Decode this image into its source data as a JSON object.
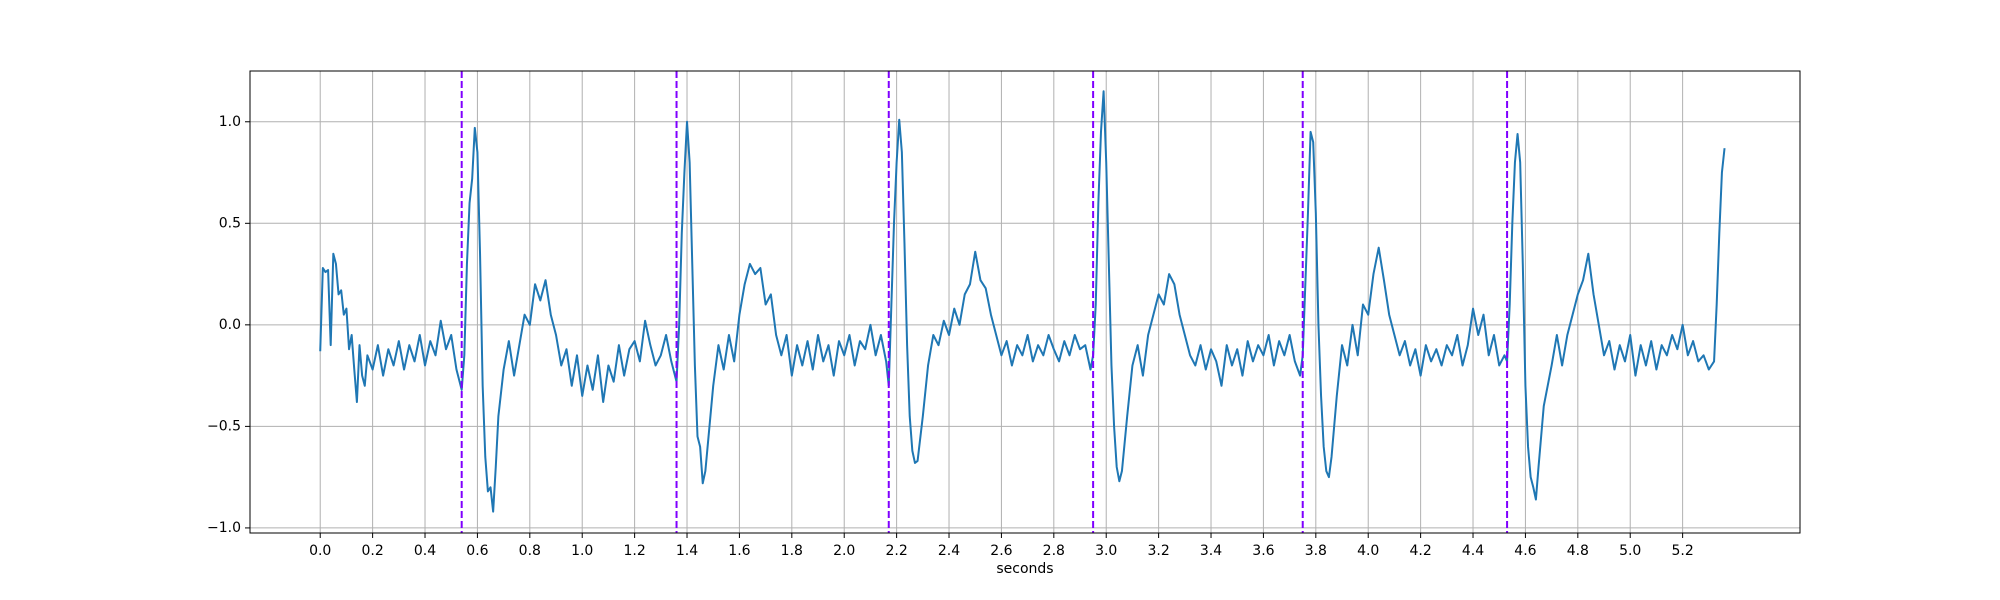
{
  "chart_data": {
    "type": "line",
    "xlabel": "seconds",
    "xlim": [
      -0.268,
      5.648
    ],
    "ylim": [
      -1.025,
      1.25
    ],
    "grid": true,
    "xticks": [
      {
        "value": 0,
        "label": "0.0"
      },
      0.2,
      0.4,
      0.6,
      0.8,
      {
        "value": 1,
        "label": "1.0"
      },
      1.2,
      1.4,
      1.6,
      1.8,
      {
        "value": 2,
        "label": "2.0"
      },
      2.2,
      2.4,
      2.6,
      2.8,
      {
        "value": 3,
        "label": "3.0"
      },
      3.2,
      3.4,
      3.6,
      3.8,
      {
        "value": 4,
        "label": "4.0"
      },
      4.2,
      4.4,
      4.6,
      4.8,
      {
        "value": 5,
        "label": "5.0"
      },
      5.2
    ],
    "yticks": [
      {
        "value": -1,
        "label": "−1.0"
      },
      {
        "value": -0.5,
        "label": "−0.5"
      },
      {
        "value": 0,
        "label": "0.0"
      },
      0.5,
      {
        "value": 1,
        "label": "1.0"
      }
    ],
    "vlines": {
      "x": [
        0.54,
        1.36,
        2.17,
        2.95,
        3.75,
        4.53
      ],
      "color": "#7f00ff"
    },
    "series": [
      {
        "color": "#1f77b4",
        "x": [
          0.0,
          0.01,
          0.02,
          0.03,
          0.04,
          0.05,
          0.06,
          0.07,
          0.08,
          0.09,
          0.1,
          0.11,
          0.12,
          0.13,
          0.14,
          0.15,
          0.16,
          0.17,
          0.18,
          0.2,
          0.22,
          0.24,
          0.26,
          0.28,
          0.3,
          0.32,
          0.34,
          0.36,
          0.38,
          0.4,
          0.42,
          0.44,
          0.46,
          0.48,
          0.5,
          0.52,
          0.54,
          0.55,
          0.56,
          0.57,
          0.58,
          0.59,
          0.6,
          0.61,
          0.62,
          0.63,
          0.64,
          0.65,
          0.66,
          0.67,
          0.68,
          0.7,
          0.72,
          0.74,
          0.76,
          0.78,
          0.8,
          0.82,
          0.84,
          0.86,
          0.88,
          0.9,
          0.92,
          0.94,
          0.96,
          0.98,
          1.0,
          1.02,
          1.04,
          1.06,
          1.08,
          1.1,
          1.12,
          1.14,
          1.16,
          1.18,
          1.2,
          1.22,
          1.24,
          1.26,
          1.28,
          1.3,
          1.32,
          1.34,
          1.36,
          1.37,
          1.38,
          1.39,
          1.4,
          1.41,
          1.42,
          1.43,
          1.44,
          1.45,
          1.46,
          1.47,
          1.48,
          1.5,
          1.52,
          1.54,
          1.56,
          1.58,
          1.6,
          1.62,
          1.64,
          1.66,
          1.68,
          1.7,
          1.72,
          1.74,
          1.76,
          1.78,
          1.8,
          1.82,
          1.84,
          1.86,
          1.88,
          1.9,
          1.92,
          1.94,
          1.96,
          1.98,
          2.0,
          2.02,
          2.04,
          2.06,
          2.08,
          2.1,
          2.12,
          2.14,
          2.16,
          2.17,
          2.18,
          2.19,
          2.2,
          2.21,
          2.22,
          2.23,
          2.24,
          2.25,
          2.26,
          2.27,
          2.28,
          2.3,
          2.32,
          2.34,
          2.36,
          2.38,
          2.4,
          2.42,
          2.44,
          2.46,
          2.48,
          2.5,
          2.52,
          2.54,
          2.56,
          2.58,
          2.6,
          2.62,
          2.64,
          2.66,
          2.68,
          2.7,
          2.72,
          2.74,
          2.76,
          2.78,
          2.8,
          2.82,
          2.84,
          2.86,
          2.88,
          2.9,
          2.92,
          2.94,
          2.95,
          2.96,
          2.97,
          2.98,
          2.99,
          3.0,
          3.01,
          3.02,
          3.03,
          3.04,
          3.05,
          3.06,
          3.08,
          3.1,
          3.12,
          3.14,
          3.16,
          3.18,
          3.2,
          3.22,
          3.24,
          3.26,
          3.28,
          3.3,
          3.32,
          3.34,
          3.36,
          3.38,
          3.4,
          3.42,
          3.44,
          3.46,
          3.48,
          3.5,
          3.52,
          3.54,
          3.56,
          3.58,
          3.6,
          3.62,
          3.64,
          3.66,
          3.68,
          3.7,
          3.72,
          3.74,
          3.75,
          3.76,
          3.77,
          3.78,
          3.79,
          3.8,
          3.81,
          3.82,
          3.83,
          3.84,
          3.85,
          3.86,
          3.88,
          3.9,
          3.92,
          3.94,
          3.96,
          3.98,
          4.0,
          4.02,
          4.04,
          4.06,
          4.08,
          4.1,
          4.12,
          4.14,
          4.16,
          4.18,
          4.2,
          4.22,
          4.24,
          4.26,
          4.28,
          4.3,
          4.32,
          4.34,
          4.36,
          4.38,
          4.4,
          4.42,
          4.44,
          4.46,
          4.48,
          4.5,
          4.52,
          4.53,
          4.54,
          4.55,
          4.56,
          4.57,
          4.58,
          4.59,
          4.6,
          4.61,
          4.62,
          4.63,
          4.64,
          4.65,
          4.67,
          4.7,
          4.72,
          4.74,
          4.76,
          4.78,
          4.8,
          4.82,
          4.84,
          4.86,
          4.88,
          4.9,
          4.92,
          4.94,
          4.96,
          4.98,
          5.0,
          5.02,
          5.04,
          5.06,
          5.08,
          5.1,
          5.12,
          5.14,
          5.16,
          5.18,
          5.2,
          5.22,
          5.24,
          5.26,
          5.28,
          5.3,
          5.32,
          5.33,
          5.34,
          5.35,
          5.36
        ],
        "values": [
          -0.13,
          0.28,
          0.26,
          0.27,
          -0.1,
          0.35,
          0.3,
          0.15,
          0.17,
          0.05,
          0.08,
          -0.12,
          -0.05,
          -0.22,
          -0.38,
          -0.1,
          -0.25,
          -0.3,
          -0.15,
          -0.22,
          -0.1,
          -0.25,
          -0.12,
          -0.2,
          -0.08,
          -0.22,
          -0.1,
          -0.18,
          -0.05,
          -0.2,
          -0.08,
          -0.15,
          0.02,
          -0.12,
          -0.05,
          -0.22,
          -0.32,
          -0.15,
          0.3,
          0.6,
          0.72,
          0.97,
          0.85,
          0.35,
          -0.3,
          -0.65,
          -0.82,
          -0.8,
          -0.92,
          -0.7,
          -0.45,
          -0.22,
          -0.08,
          -0.25,
          -0.1,
          0.05,
          0.0,
          0.2,
          0.12,
          0.22,
          0.05,
          -0.05,
          -0.2,
          -0.12,
          -0.3,
          -0.15,
          -0.35,
          -0.2,
          -0.32,
          -0.15,
          -0.38,
          -0.2,
          -0.28,
          -0.1,
          -0.25,
          -0.12,
          -0.08,
          -0.18,
          0.02,
          -0.1,
          -0.2,
          -0.15,
          -0.05,
          -0.18,
          -0.28,
          0.0,
          0.45,
          0.75,
          1.0,
          0.8,
          0.3,
          -0.2,
          -0.55,
          -0.6,
          -0.78,
          -0.72,
          -0.58,
          -0.3,
          -0.1,
          -0.22,
          -0.05,
          -0.18,
          0.05,
          0.2,
          0.3,
          0.25,
          0.28,
          0.1,
          0.15,
          -0.05,
          -0.15,
          -0.05,
          -0.25,
          -0.1,
          -0.2,
          -0.08,
          -0.22,
          -0.05,
          -0.18,
          -0.1,
          -0.25,
          -0.08,
          -0.15,
          -0.05,
          -0.2,
          -0.08,
          -0.12,
          0.0,
          -0.15,
          -0.05,
          -0.18,
          -0.3,
          0.1,
          0.5,
          0.8,
          1.01,
          0.85,
          0.4,
          -0.1,
          -0.45,
          -0.62,
          -0.68,
          -0.67,
          -0.45,
          -0.2,
          -0.05,
          -0.1,
          0.02,
          -0.05,
          0.08,
          0.0,
          0.15,
          0.2,
          0.36,
          0.22,
          0.18,
          0.05,
          -0.05,
          -0.15,
          -0.08,
          -0.2,
          -0.1,
          -0.15,
          -0.05,
          -0.18,
          -0.1,
          -0.15,
          -0.05,
          -0.12,
          -0.18,
          -0.08,
          -0.15,
          -0.05,
          -0.12,
          -0.1,
          -0.22,
          -0.15,
          0.1,
          0.6,
          0.95,
          1.15,
          0.8,
          0.3,
          -0.2,
          -0.5,
          -0.7,
          -0.77,
          -0.72,
          -0.45,
          -0.2,
          -0.1,
          -0.25,
          -0.05,
          0.05,
          0.15,
          0.1,
          0.25,
          0.2,
          0.05,
          -0.05,
          -0.15,
          -0.2,
          -0.1,
          -0.22,
          -0.12,
          -0.18,
          -0.3,
          -0.1,
          -0.2,
          -0.12,
          -0.25,
          -0.08,
          -0.18,
          -0.1,
          -0.15,
          -0.05,
          -0.2,
          -0.08,
          -0.15,
          -0.05,
          -0.18,
          -0.25,
          -0.15,
          0.2,
          0.55,
          0.95,
          0.9,
          0.55,
          0.0,
          -0.35,
          -0.6,
          -0.72,
          -0.75,
          -0.65,
          -0.35,
          -0.1,
          -0.2,
          0.0,
          -0.15,
          0.1,
          0.05,
          0.25,
          0.38,
          0.22,
          0.05,
          -0.05,
          -0.15,
          -0.08,
          -0.2,
          -0.12,
          -0.25,
          -0.1,
          -0.18,
          -0.12,
          -0.2,
          -0.1,
          -0.15,
          -0.05,
          -0.2,
          -0.1,
          0.08,
          -0.05,
          0.05,
          -0.15,
          -0.05,
          -0.2,
          -0.15,
          -0.18,
          0.1,
          0.5,
          0.8,
          0.94,
          0.8,
          0.3,
          -0.3,
          -0.6,
          -0.75,
          -0.8,
          -0.86,
          -0.7,
          -0.4,
          -0.2,
          -0.05,
          -0.2,
          -0.05,
          0.05,
          0.15,
          0.22,
          0.35,
          0.15,
          0.0,
          -0.15,
          -0.08,
          -0.22,
          -0.1,
          -0.18,
          -0.05,
          -0.25,
          -0.1,
          -0.2,
          -0.08,
          -0.22,
          -0.1,
          -0.15,
          -0.05,
          -0.12,
          0.0,
          -0.15,
          -0.08,
          -0.18,
          -0.15,
          -0.22,
          -0.18,
          0.1,
          0.45,
          0.75,
          0.87
        ]
      }
    ]
  }
}
